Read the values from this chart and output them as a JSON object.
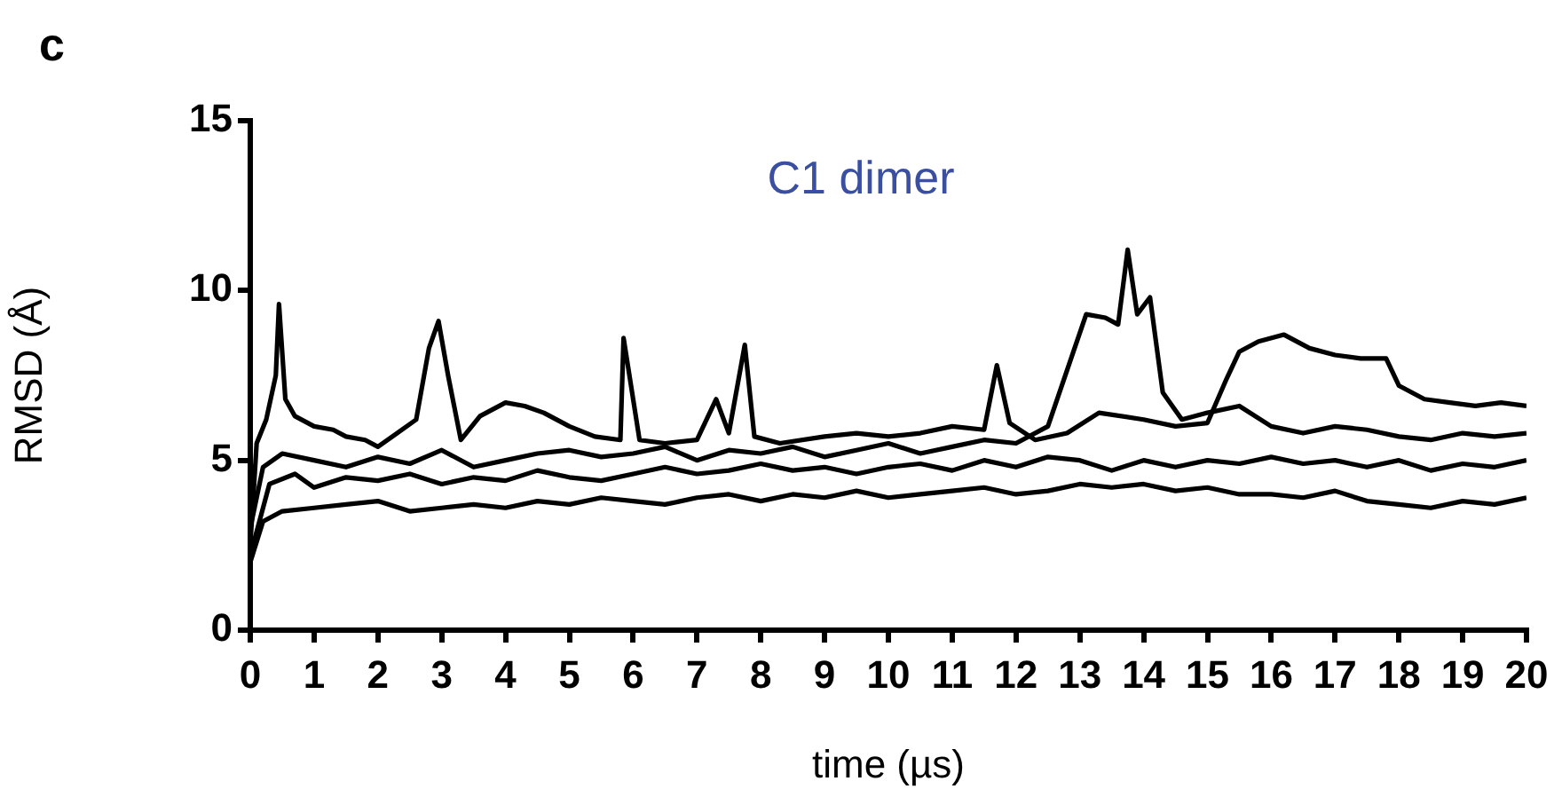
{
  "chart_data": {
    "type": "line",
    "title": "C1 dimer",
    "xlabel": "time (µs)",
    "ylabel": "RMSD (Å)",
    "annotations": [
      "c"
    ],
    "xlim": [
      0,
      20
    ],
    "xticks": [
      0,
      1,
      2,
      3,
      4,
      5,
      6,
      7,
      8,
      9,
      10,
      11,
      12,
      13,
      14,
      15,
      16,
      17,
      18,
      19,
      20
    ],
    "ylim": [
      0,
      15
    ],
    "yticks": [
      0,
      5,
      10,
      15
    ],
    "grid": false,
    "legend": false,
    "marker": "none",
    "line_style": "solid",
    "series": [
      {
        "color": "#000000",
        "x": [
          0,
          0.1,
          0.25,
          0.4,
          0.45,
          0.55,
          0.7,
          1,
          1.3,
          1.5,
          1.8,
          2,
          2.3,
          2.6,
          2.8,
          2.95,
          3.1,
          3.3,
          3.6,
          4,
          4.3,
          4.6,
          5,
          5.4,
          5.8,
          5.85,
          6.1,
          6.5,
          7,
          7.3,
          7.5,
          7.75,
          7.9,
          8.3,
          9,
          9.5,
          10,
          10.5,
          11,
          11.5,
          11.7,
          11.9,
          12.3,
          12.8,
          13.3,
          14,
          14.5,
          15,
          15.3,
          15.5,
          15.8,
          16.2,
          16.6,
          17,
          17.4,
          17.8,
          18,
          18.4,
          18.8,
          19.2,
          19.6,
          20
        ],
        "values": [
          2.5,
          5.5,
          6.2,
          7.5,
          9.6,
          6.8,
          6.3,
          6,
          5.9,
          5.7,
          5.6,
          5.4,
          5.8,
          6.2,
          8.3,
          9.1,
          7.5,
          5.6,
          6.3,
          6.7,
          6.6,
          6.4,
          6,
          5.7,
          5.6,
          8.6,
          5.6,
          5.5,
          5.6,
          6.8,
          5.8,
          8.4,
          5.7,
          5.5,
          5.7,
          5.8,
          5.7,
          5.8,
          6,
          5.9,
          7.8,
          6.1,
          5.6,
          5.8,
          6.4,
          6.2,
          6,
          6.1,
          7.4,
          8.2,
          8.5,
          8.7,
          8.3,
          8.1,
          8,
          8,
          7.2,
          6.8,
          6.7,
          6.6,
          6.7,
          6.6
        ]
      },
      {
        "color": "#000000",
        "x": [
          0,
          0.2,
          0.5,
          1,
          1.5,
          2,
          2.5,
          3,
          3.5,
          4,
          4.5,
          5,
          5.5,
          6,
          6.5,
          7,
          7.5,
          8,
          8.5,
          9,
          9.5,
          10,
          10.5,
          11,
          11.5,
          12,
          12.5,
          12.9,
          13.1,
          13.4,
          13.6,
          13.75,
          13.9,
          14.1,
          14.3,
          14.6,
          15,
          15.5,
          16,
          16.5,
          17,
          17.5,
          18,
          18.5,
          19,
          19.5,
          20
        ],
        "values": [
          3,
          4.8,
          5.2,
          5,
          4.8,
          5.1,
          4.9,
          5.3,
          4.8,
          5,
          5.2,
          5.3,
          5.1,
          5.2,
          5.4,
          5,
          5.3,
          5.2,
          5.4,
          5.1,
          5.3,
          5.5,
          5.2,
          5.4,
          5.6,
          5.5,
          6,
          8.2,
          9.3,
          9.2,
          9,
          11.2,
          9.3,
          9.8,
          7,
          6.2,
          6.4,
          6.6,
          6,
          5.8,
          6,
          5.9,
          5.7,
          5.6,
          5.8,
          5.7,
          5.8
        ]
      },
      {
        "color": "#000000",
        "x": [
          0,
          0.3,
          0.7,
          1,
          1.5,
          2,
          2.5,
          3,
          3.5,
          4,
          4.5,
          5,
          5.5,
          6,
          6.5,
          7,
          7.5,
          8,
          8.5,
          9,
          9.5,
          10,
          10.5,
          11,
          11.5,
          12,
          12.5,
          13,
          13.5,
          14,
          14.5,
          15,
          15.5,
          16,
          16.5,
          17,
          17.5,
          18,
          18.5,
          19,
          19.5,
          20
        ],
        "values": [
          2.2,
          4.3,
          4.6,
          4.2,
          4.5,
          4.4,
          4.6,
          4.3,
          4.5,
          4.4,
          4.7,
          4.5,
          4.4,
          4.6,
          4.8,
          4.6,
          4.7,
          4.9,
          4.7,
          4.8,
          4.6,
          4.8,
          4.9,
          4.7,
          5,
          4.8,
          5.1,
          5,
          4.7,
          5,
          4.8,
          5,
          4.9,
          5.1,
          4.9,
          5,
          4.8,
          5,
          4.7,
          4.9,
          4.8,
          5
        ]
      },
      {
        "color": "#000000",
        "x": [
          0,
          0.2,
          0.5,
          1,
          1.5,
          2,
          2.5,
          3,
          3.5,
          4,
          4.5,
          5,
          5.5,
          6,
          6.5,
          7,
          7.5,
          8,
          8.5,
          9,
          9.5,
          10,
          10.5,
          11,
          11.5,
          12,
          12.5,
          13,
          13.5,
          14,
          14.5,
          15,
          15.5,
          16,
          16.5,
          17,
          17.5,
          18,
          18.5,
          19,
          19.5,
          20
        ],
        "values": [
          2,
          3.2,
          3.5,
          3.6,
          3.7,
          3.8,
          3.5,
          3.6,
          3.7,
          3.6,
          3.8,
          3.7,
          3.9,
          3.8,
          3.7,
          3.9,
          4,
          3.8,
          4,
          3.9,
          4.1,
          3.9,
          4,
          4.1,
          4.2,
          4,
          4.1,
          4.3,
          4.2,
          4.3,
          4.1,
          4.2,
          4,
          4,
          3.9,
          4.1,
          3.8,
          3.7,
          3.6,
          3.8,
          3.7,
          3.9
        ]
      }
    ]
  }
}
